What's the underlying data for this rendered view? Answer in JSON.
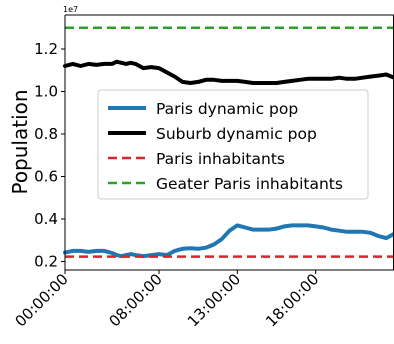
{
  "chart_data": {
    "type": "line",
    "title": "",
    "xlabel": "",
    "ylabel": "Population",
    "y_offset_label": "1e7",
    "ylim": [
      1.6,
      13.6
    ],
    "yticks": [
      {
        "value": 2,
        "label": "0.2"
      },
      {
        "value": 4,
        "label": "0.4"
      },
      {
        "value": 6,
        "label": "0.6"
      },
      {
        "value": 8,
        "label": "0.8"
      },
      {
        "value": 10,
        "label": "1.0"
      },
      {
        "value": 12,
        "label": "1.2"
      }
    ],
    "xlim": [
      0,
      21
    ],
    "xticks": [
      {
        "value": 0,
        "label": "00:00:00"
      },
      {
        "value": 6,
        "label": "08:00:00"
      },
      {
        "value": 11,
        "label": "13:00:00"
      },
      {
        "value": 16,
        "label": "18:00:00"
      }
    ],
    "grid": false,
    "legend_position": "center",
    "series": [
      {
        "name": "Paris dynamic pop",
        "color": "#1f77b4",
        "style": "solid",
        "x": [
          0,
          0.5,
          1,
          1.5,
          2,
          2.5,
          3,
          3.3,
          3.6,
          3.9,
          4.2,
          4.5,
          5,
          5.5,
          6,
          6.5,
          7,
          7.5,
          8,
          8.5,
          9,
          9.5,
          10,
          10.5,
          11,
          11.5,
          12,
          12.5,
          13,
          13.5,
          14,
          14.5,
          15,
          15.5,
          16,
          16.5,
          17,
          17.5,
          18,
          18.5,
          19,
          19.5,
          20,
          20.5,
          21
        ],
        "y": [
          2.42,
          2.5,
          2.5,
          2.45,
          2.5,
          2.5,
          2.4,
          2.3,
          2.25,
          2.3,
          2.35,
          2.3,
          2.25,
          2.3,
          2.35,
          2.3,
          2.5,
          2.6,
          2.62,
          2.6,
          2.65,
          2.8,
          3.05,
          3.45,
          3.7,
          3.6,
          3.5,
          3.5,
          3.5,
          3.55,
          3.65,
          3.7,
          3.7,
          3.7,
          3.65,
          3.6,
          3.5,
          3.45,
          3.4,
          3.4,
          3.4,
          3.35,
          3.2,
          3.1,
          3.3
        ]
      },
      {
        "name": "Suburb dynamic pop",
        "color": "#000000",
        "style": "solid",
        "x": [
          0,
          0.5,
          1,
          1.5,
          2,
          2.5,
          3,
          3.3,
          3.6,
          3.9,
          4.2,
          4.5,
          5,
          5.5,
          6,
          6.5,
          7,
          7.5,
          8,
          8.5,
          9,
          9.5,
          10,
          10.5,
          11,
          11.5,
          12,
          12.5,
          13,
          13.5,
          14,
          14.5,
          15,
          15.5,
          16,
          16.5,
          17,
          17.5,
          18,
          18.5,
          19,
          19.5,
          20,
          20.5,
          21
        ],
        "y": [
          11.2,
          11.3,
          11.2,
          11.3,
          11.25,
          11.3,
          11.3,
          11.4,
          11.35,
          11.3,
          11.35,
          11.3,
          11.1,
          11.15,
          11.1,
          10.9,
          10.7,
          10.45,
          10.4,
          10.45,
          10.55,
          10.55,
          10.5,
          10.5,
          10.5,
          10.45,
          10.4,
          10.4,
          10.4,
          10.4,
          10.45,
          10.5,
          10.55,
          10.6,
          10.6,
          10.6,
          10.6,
          10.65,
          10.6,
          10.6,
          10.65,
          10.7,
          10.75,
          10.8,
          10.65
        ]
      },
      {
        "name": "Paris inhabitants",
        "color": "#d62728",
        "style": "dashed",
        "x": [
          0,
          21
        ],
        "y": [
          2.23,
          2.23
        ]
      },
      {
        "name": "Geater Paris inhabitants",
        "color": "#2ca02c",
        "style": "dashed",
        "x": [
          0,
          21
        ],
        "y": [
          13.0,
          13.0
        ]
      }
    ]
  }
}
